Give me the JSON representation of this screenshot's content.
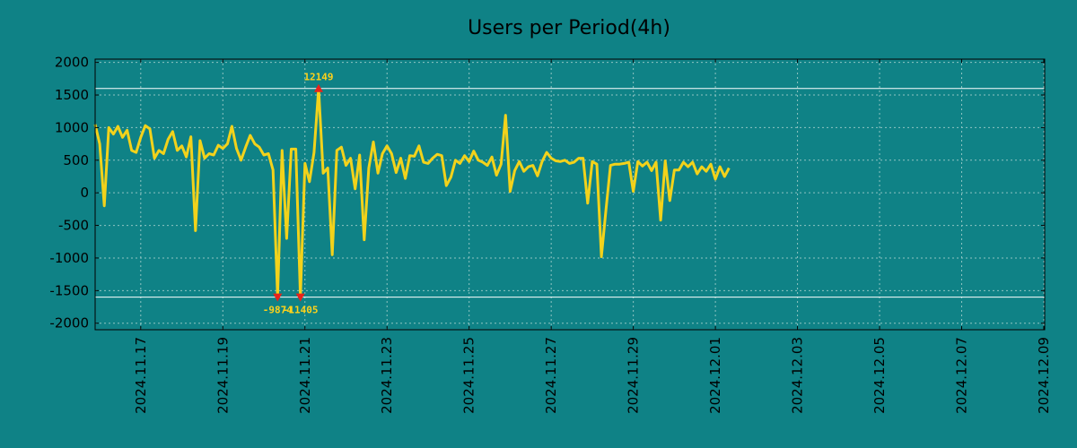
{
  "chart_data": {
    "type": "line",
    "title": "Users per Period(4h)",
    "xlabel": "",
    "ylabel": "",
    "ylim": [
      -2100,
      2050
    ],
    "y_ticks": [
      2000,
      1500,
      1000,
      500,
      0,
      -500,
      -1000,
      -1500,
      -2000
    ],
    "y_tick_labels": [
      "2000",
      "1500",
      "1000",
      "500",
      "0",
      "-500",
      "-1000",
      "-1500",
      "-2000"
    ],
    "x_ticks": [
      {
        "label": "2024.11.17",
        "index": 10
      },
      {
        "label": "2024.11.19",
        "index": 28
      },
      {
        "label": "2024.11.21",
        "index": 46
      },
      {
        "label": "2024.11.23",
        "index": 64
      },
      {
        "label": "2024.11.25",
        "index": 82
      },
      {
        "label": "2024.11.27",
        "index": 100
      },
      {
        "label": "2024.11.29",
        "index": 118
      },
      {
        "label": "2024.12.01",
        "index": 136
      },
      {
        "label": "2024.12.03",
        "index": 154
      },
      {
        "label": "2024.12.05",
        "index": 172
      },
      {
        "label": "2024.12.07",
        "index": 190
      },
      {
        "label": "2024.12.09",
        "index": 208
      }
    ],
    "x_index_range": [
      0,
      208.2
    ],
    "grid": true,
    "colors": {
      "line": "#f2d21b",
      "marker": "#e8221b",
      "annotation": "#ffd21a",
      "background": "#0f8286",
      "grid": "#8fc4c2",
      "ref_line": "#ffffff"
    },
    "reference_lines": [
      1600,
      -1600
    ],
    "series": [
      {
        "name": "Users per Period(4h)",
        "values": [
          1050,
          750,
          -200,
          1000,
          900,
          1020,
          850,
          960,
          650,
          620,
          850,
          1030,
          980,
          530,
          650,
          600,
          820,
          940,
          650,
          720,
          550,
          860,
          -580,
          800,
          530,
          600,
          580,
          730,
          680,
          750,
          1020,
          680,
          500,
          700,
          880,
          750,
          700,
          580,
          600,
          350,
          -1600,
          650,
          -700,
          670,
          670,
          -1600,
          450,
          170,
          620,
          1600,
          300,
          380,
          -950,
          650,
          700,
          420,
          530,
          60,
          580,
          -720,
          380,
          780,
          300,
          600,
          720,
          600,
          310,
          530,
          220,
          570,
          560,
          720,
          470,
          450,
          530,
          590,
          570,
          110,
          240,
          500,
          450,
          570,
          480,
          640,
          500,
          470,
          420,
          550,
          270,
          440,
          1190,
          20,
          340,
          480,
          330,
          400,
          420,
          260,
          480,
          620,
          530,
          490,
          480,
          500,
          450,
          470,
          530,
          530,
          -160,
          480,
          440,
          -980,
          -270,
          420,
          440,
          440,
          450,
          470,
          20,
          480,
          410,
          470,
          340,
          470,
          -420,
          490,
          -120,
          350,
          350,
          470,
          400,
          470,
          290,
          400,
          330,
          440,
          210,
          400,
          250,
          380
        ]
      }
    ],
    "annotations": [
      {
        "label": "12149",
        "index": 49,
        "value": 1600,
        "marker": "triangle-up",
        "text_position": "above"
      },
      {
        "label": "-9874",
        "index": 40,
        "value": -1600,
        "marker": "triangle-down",
        "text_position": "below"
      },
      {
        "label": "-11405",
        "index": 45,
        "value": -1600,
        "marker": "triangle-down",
        "text_position": "below"
      }
    ]
  }
}
